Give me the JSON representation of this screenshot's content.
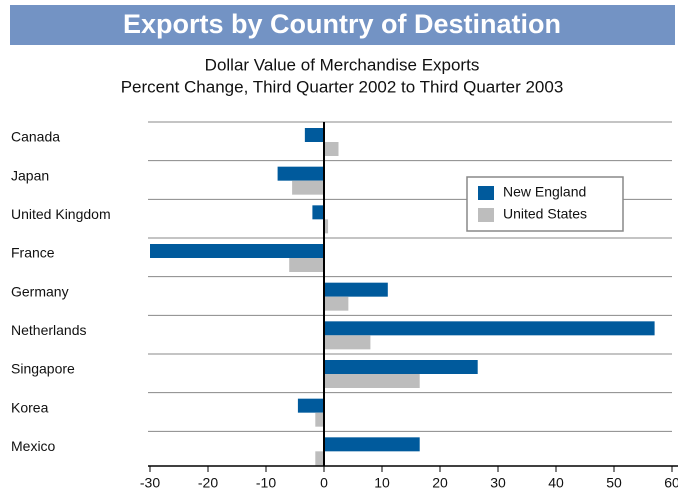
{
  "chart_data": {
    "type": "barh",
    "title": "Exports by Country of Destination",
    "subtitle": [
      "Dollar Value of Merchandise Exports",
      "Percent Change, Third Quarter 2002 to Third Quarter 2003"
    ],
    "categories": [
      "Canada",
      "Japan",
      "United Kingdom",
      "France",
      "Germany",
      "Netherlands",
      "Singapore",
      "Korea",
      "Mexico"
    ],
    "series": [
      {
        "name": "New England",
        "color": "#005a9c",
        "values": [
          -3.3,
          -8,
          -2,
          -30,
          11,
          57,
          26.5,
          -4.5,
          16.5
        ]
      },
      {
        "name": "United States",
        "color": "#bdbdbd",
        "values": [
          2.5,
          -5.5,
          0.7,
          -6,
          4.2,
          8,
          16.5,
          -1.5,
          -1.5
        ]
      }
    ],
    "xlim": [
      -30,
      60
    ],
    "xticks": [
      -30,
      -20,
      -10,
      0,
      10,
      20,
      30,
      40,
      50,
      60
    ],
    "grid": true,
    "legend": "upper right"
  }
}
